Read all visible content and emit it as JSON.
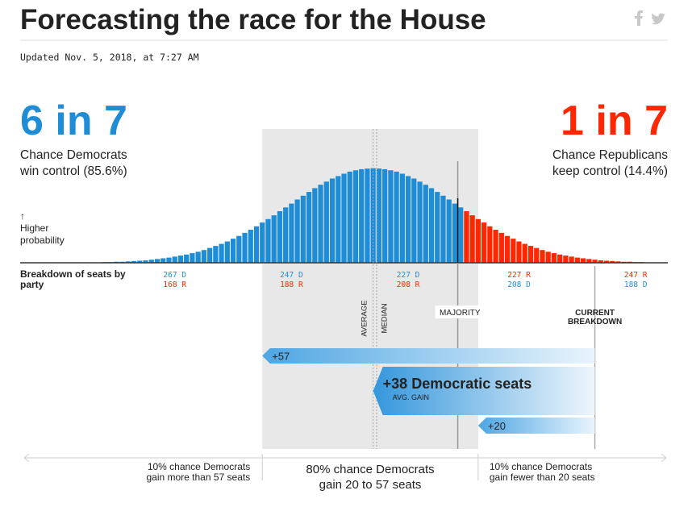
{
  "title": "Forecasting the race for the House",
  "updated": "Updated Nov. 5, 2018, at 7:27 AM",
  "chart_data": {
    "type": "bar",
    "dem_odds": "6 in 7",
    "dem_caption": [
      "Chance Democrats",
      "win control (85.6%)"
    ],
    "rep_odds": "1 in 7",
    "rep_caption": [
      "Chance Republicans",
      "keep control (14.4%)"
    ],
    "y_label": [
      "↑",
      "Higher",
      "probability"
    ],
    "x_label": [
      "Breakdown of seats by",
      "party"
    ],
    "x": [
      293,
      292,
      291,
      290,
      289,
      288,
      287,
      286,
      285,
      284,
      283,
      282,
      281,
      280,
      279,
      278,
      277,
      276,
      275,
      274,
      273,
      272,
      271,
      270,
      269,
      268,
      267,
      266,
      265,
      264,
      263,
      262,
      261,
      260,
      259,
      258,
      257,
      256,
      255,
      254,
      253,
      252,
      251,
      250,
      249,
      248,
      247,
      246,
      245,
      244,
      243,
      242,
      241,
      240,
      239,
      238,
      237,
      236,
      235,
      234,
      233,
      232,
      231,
      230,
      229,
      228,
      227,
      226,
      225,
      224,
      223,
      222,
      221,
      220,
      219,
      218,
      217,
      216,
      215,
      214,
      213,
      212,
      211,
      210,
      209,
      208,
      207,
      206,
      205,
      204,
      203,
      202,
      201,
      200,
      199,
      198,
      197,
      196,
      195,
      194,
      193,
      192,
      191,
      190,
      189,
      188,
      187,
      186,
      185,
      184,
      183
    ],
    "values": [
      0.01,
      0.01,
      0.01,
      0.01,
      0.01,
      0.01,
      0.01,
      0.01,
      0.01,
      0.01,
      0.01,
      0.01,
      0.01,
      0.01,
      0.02,
      0.02,
      0.03,
      0.03,
      0.04,
      0.05,
      0.06,
      0.07,
      0.09,
      0.11,
      0.13,
      0.15,
      0.18,
      0.21,
      0.24,
      0.28,
      0.32,
      0.37,
      0.43,
      0.49,
      0.55,
      0.62,
      0.7,
      0.78,
      0.87,
      0.96,
      1.06,
      1.17,
      1.27,
      1.38,
      1.5,
      1.61,
      1.72,
      1.84,
      1.95,
      2.06,
      2.17,
      2.27,
      2.36,
      2.45,
      2.52,
      2.59,
      2.65,
      2.69,
      2.72,
      2.74,
      2.75,
      2.74,
      2.72,
      2.69,
      2.65,
      2.59,
      2.52,
      2.45,
      2.36,
      2.27,
      2.17,
      2.06,
      1.95,
      1.84,
      1.72,
      1.61,
      1.5,
      1.38,
      1.27,
      1.17,
      1.06,
      0.96,
      0.87,
      0.78,
      0.7,
      0.62,
      0.55,
      0.49,
      0.43,
      0.37,
      0.32,
      0.28,
      0.24,
      0.21,
      0.18,
      0.15,
      0.13,
      0.11,
      0.09,
      0.07,
      0.06,
      0.05,
      0.04,
      0.03,
      0.03,
      0.02,
      0.02,
      0.01,
      0.01,
      0.01,
      0.01
    ],
    "xlim": [
      293.5,
      182.5
    ],
    "ylim": [
      0,
      3
    ],
    "colors": {
      "D": "#1f8dd6",
      "R": "#ff2700"
    },
    "majority": {
      "value": 218,
      "label": "MAJORITY"
    },
    "average": {
      "value": 233,
      "label": "AVERAGE"
    },
    "median": {
      "value": 232.4,
      "label": "MEDIAN"
    },
    "current": {
      "value": 195,
      "label": [
        "CURRENT",
        "BREAKDOWN"
      ]
    },
    "xticks": [
      {
        "value": 267,
        "labels": [
          {
            "text": "267 D",
            "party": "D"
          },
          {
            "text": "168 R",
            "party": "R"
          }
        ]
      },
      {
        "value": 247,
        "labels": [
          {
            "text": "247 D",
            "party": "D"
          },
          {
            "text": "188 R",
            "party": "R"
          }
        ]
      },
      {
        "value": 227,
        "labels": [
          {
            "text": "227 D",
            "party": "D"
          },
          {
            "text": "208 R",
            "party": "R"
          }
        ]
      },
      {
        "value": 208,
        "labels": [
          {
            "text": "227 R",
            "party": "R"
          },
          {
            "text": "208 D",
            "party": "D"
          }
        ]
      },
      {
        "value": 188,
        "labels": [
          {
            "text": "247 R",
            "party": "R"
          },
          {
            "text": "188 D",
            "party": "D"
          }
        ]
      }
    ],
    "gains": [
      {
        "value": 57,
        "label": "+57"
      },
      {
        "value": 38,
        "label": "+38 Democratic seats",
        "sublabel": "AVG. GAIN"
      },
      {
        "value": 20,
        "label": "+20"
      }
    ],
    "range_notes": [
      [
        "10% chance Democrats",
        "gain more than 57 seats"
      ],
      [
        "80% chance Democrats",
        "gain 20 to 57 seats"
      ],
      [
        "10% chance Democrats",
        "gain fewer than 20 seats"
      ]
    ]
  }
}
